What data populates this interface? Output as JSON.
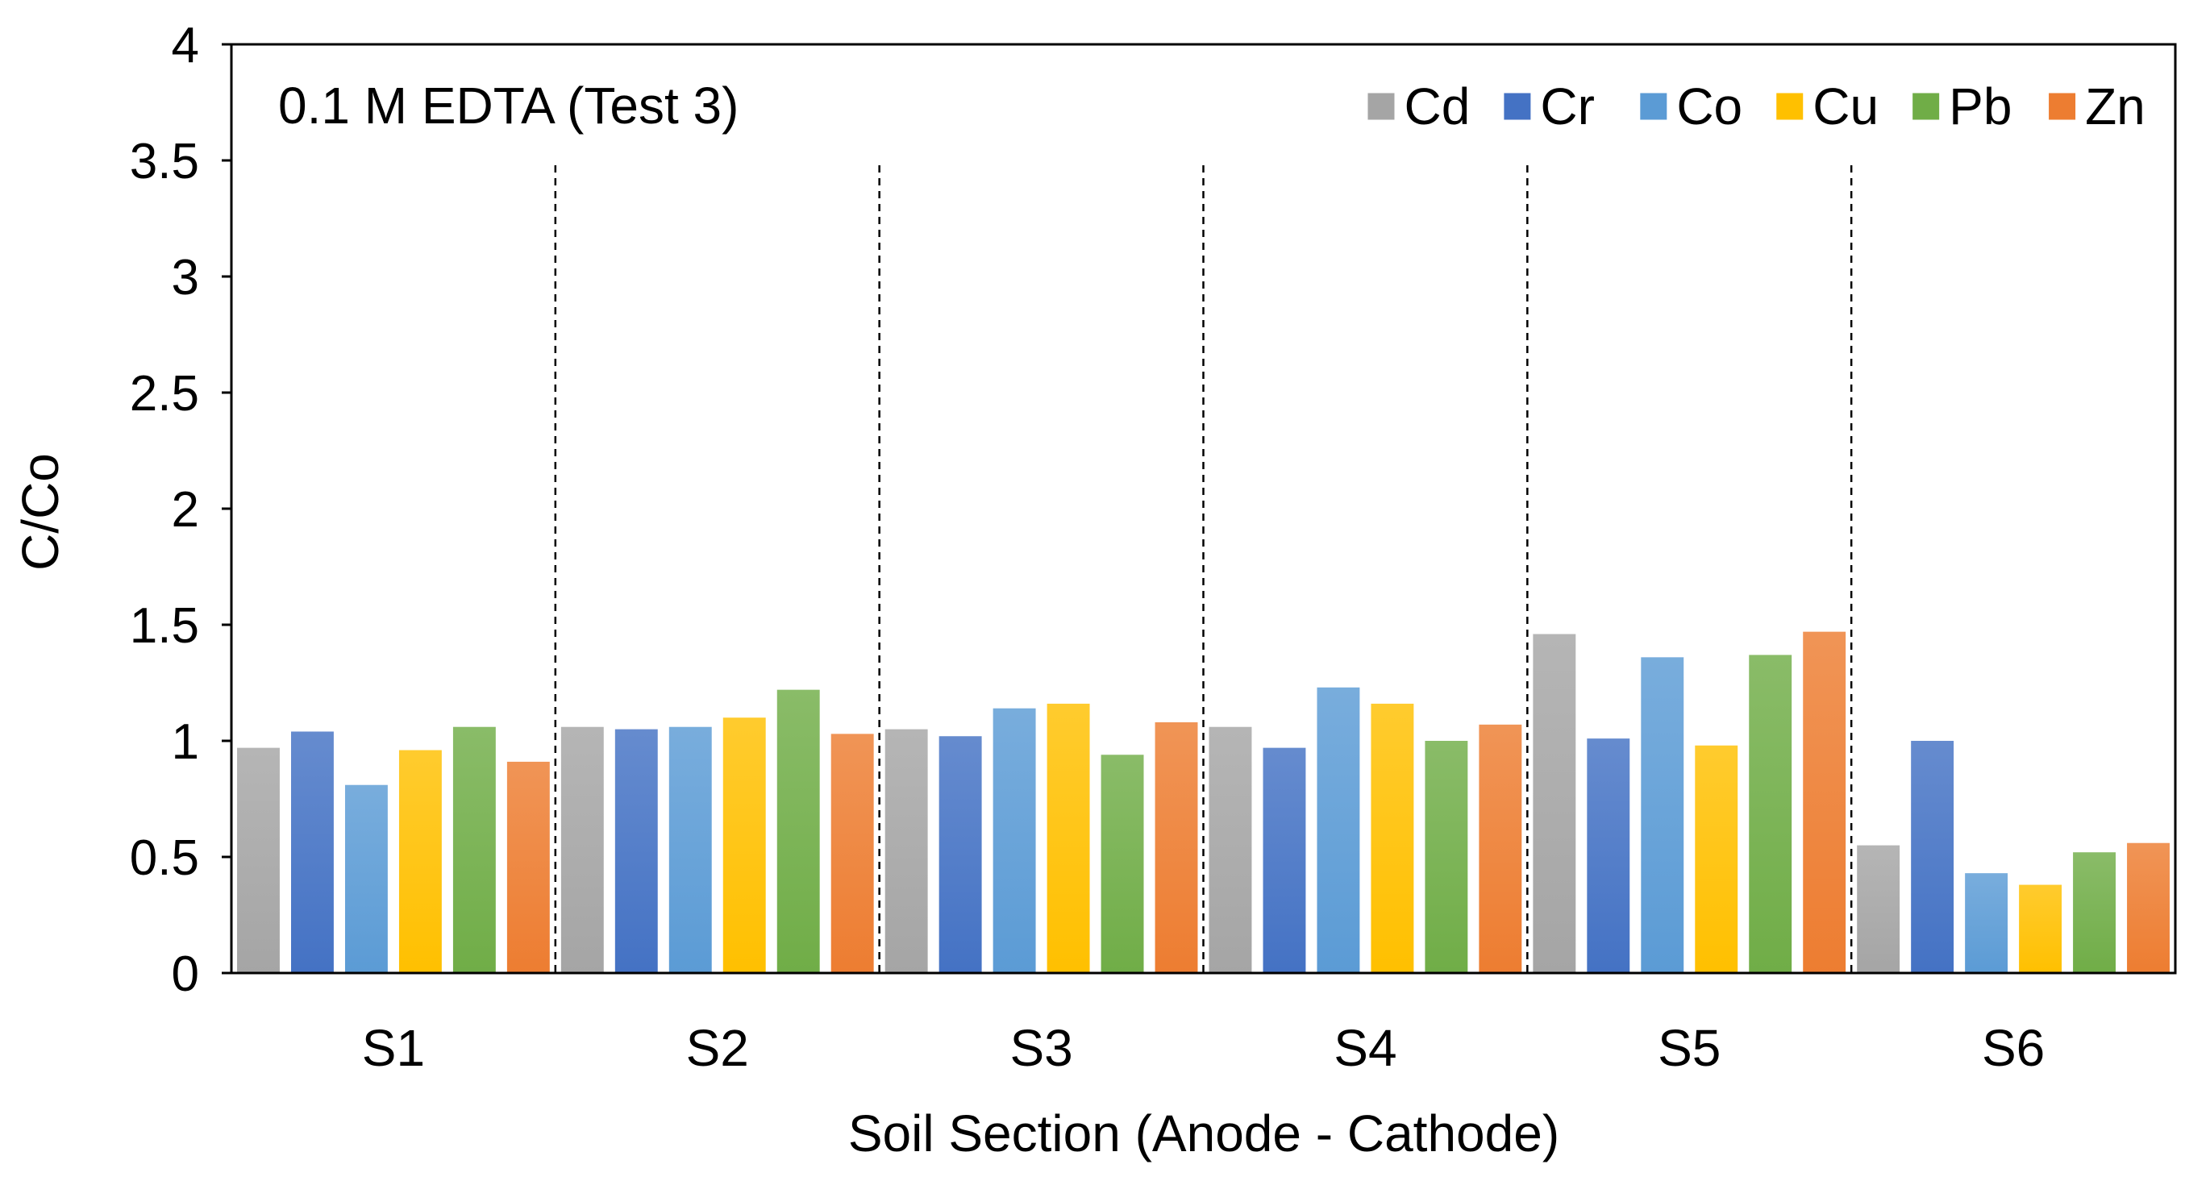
{
  "chart_data": {
    "type": "bar",
    "title": "0.1 M EDTA (Test 3)",
    "xlabel": "Soil Section (Anode - Cathode)",
    "ylabel": "C/Co",
    "ylim": [
      0,
      4
    ],
    "yticks": [
      "0",
      "0.5",
      "1",
      "1.5",
      "2",
      "2.5",
      "3",
      "3.5",
      "4"
    ],
    "grid": false,
    "legend_position": "top-right",
    "categories": [
      "S1",
      "S2",
      "S3",
      "S4",
      "S5",
      "S6"
    ],
    "series": [
      {
        "name": "Cd",
        "color": "#a5a5a5",
        "values": [
          0.97,
          1.06,
          1.05,
          1.06,
          1.46,
          0.55
        ]
      },
      {
        "name": "Cr",
        "color": "#4472c4",
        "values": [
          1.04,
          1.05,
          1.02,
          0.97,
          1.01,
          1.0
        ]
      },
      {
        "name": "Co",
        "color": "#5b9bd5",
        "values": [
          0.81,
          1.06,
          1.14,
          1.23,
          1.36,
          0.43
        ]
      },
      {
        "name": "Cu",
        "color": "#ffc000",
        "values": [
          0.96,
          1.1,
          1.16,
          1.16,
          0.98,
          0.38
        ]
      },
      {
        "name": "Pb",
        "color": "#70ad47",
        "values": [
          1.06,
          1.22,
          0.94,
          1.0,
          1.37,
          0.52
        ]
      },
      {
        "name": "Zn",
        "color": "#ed7d31",
        "values": [
          0.91,
          1.03,
          1.08,
          1.07,
          1.47,
          0.56
        ]
      }
    ]
  }
}
